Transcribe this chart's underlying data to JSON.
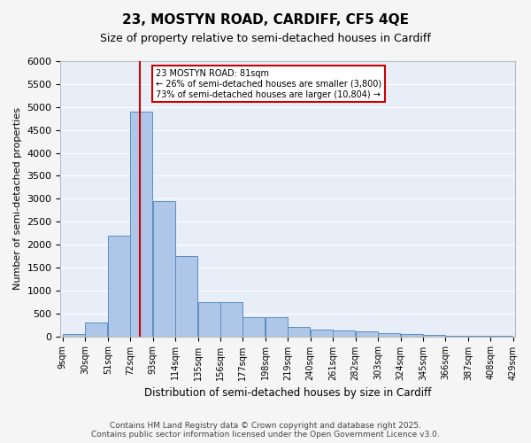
{
  "title": "23, MOSTYN ROAD, CARDIFF, CF5 4QE",
  "subtitle": "Size of property relative to semi-detached houses in Cardiff",
  "xlabel": "Distribution of semi-detached houses by size in Cardiff",
  "ylabel": "Number of semi-detached properties",
  "property_size": 81,
  "property_label": "23 MOSTYN ROAD: 81sqm",
  "pct_smaller": 26,
  "pct_larger": 73,
  "n_smaller": 3800,
  "n_larger": 10804,
  "annotation_box_color": "#cc0000",
  "bar_color": "#aec6e8",
  "bar_edge_color": "#5a8fc0",
  "vline_color": "#cc0000",
  "background_color": "#e8eef8",
  "grid_color": "#ffffff",
  "bin_edges": [
    9,
    30,
    51,
    72,
    93,
    114,
    135,
    156,
    177,
    198,
    219,
    240,
    261,
    282,
    303,
    324,
    345,
    366,
    387,
    408,
    429
  ],
  "bin_labels": [
    "9sqm",
    "30sqm",
    "51sqm",
    "72sqm",
    "93sqm",
    "114sqm",
    "135sqm",
    "156sqm",
    "177sqm",
    "198sqm",
    "219sqm",
    "240sqm",
    "261sqm",
    "282sqm",
    "303sqm",
    "324sqm",
    "345sqm",
    "366sqm",
    "387sqm",
    "408sqm",
    "429sqm"
  ],
  "values": [
    50,
    300,
    2200,
    4900,
    2950,
    1750,
    750,
    750,
    420,
    420,
    200,
    140,
    120,
    100,
    60,
    50,
    30,
    15,
    10,
    5
  ],
  "ylim": [
    0,
    6000
  ],
  "yticks": [
    0,
    500,
    1000,
    1500,
    2000,
    2500,
    3000,
    3500,
    4000,
    4500,
    5000,
    5500,
    6000
  ],
  "footer_line1": "Contains HM Land Registry data © Crown copyright and database right 2025.",
  "footer_line2": "Contains public sector information licensed under the Open Government Licence v3.0."
}
